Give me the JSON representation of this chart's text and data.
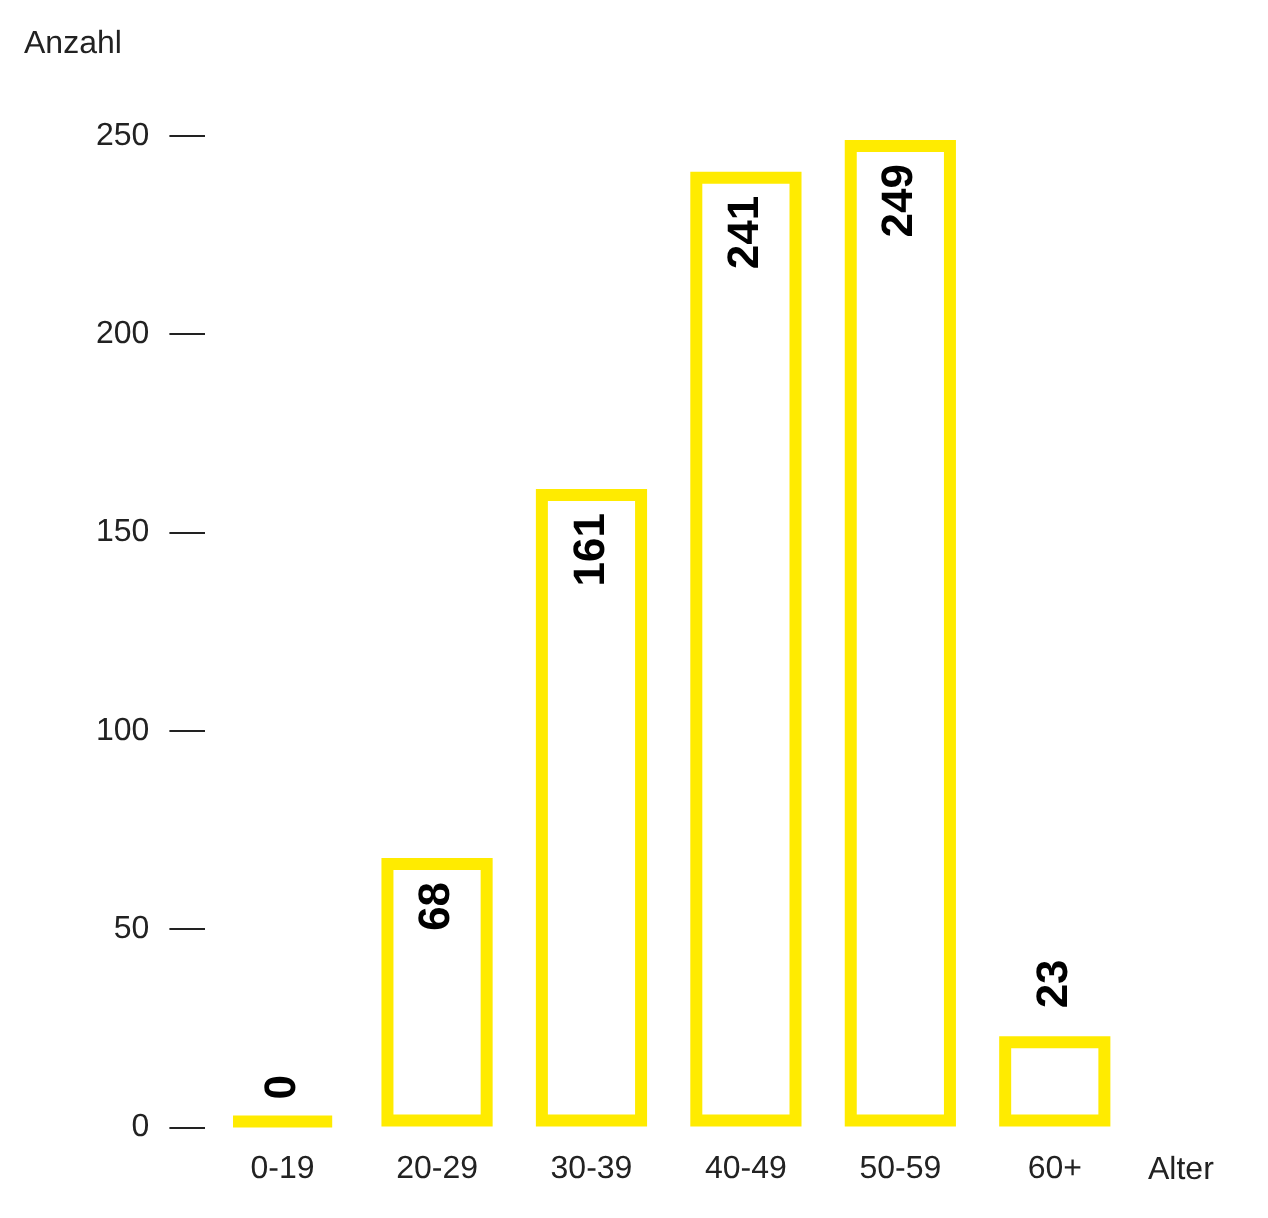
{
  "chart_data": {
    "type": "bar",
    "xlabel": "Alter",
    "ylabel": "Anzahl",
    "categories": [
      "0-19",
      "20-29",
      "30-39",
      "40-49",
      "50-59",
      "60+"
    ],
    "values": [
      0,
      68,
      161,
      241,
      249,
      23
    ],
    "color": "#ffeb00",
    "ylim": [
      0,
      250
    ],
    "yticks": [
      0,
      50,
      100,
      150,
      200,
      250
    ],
    "grid": false,
    "legend": false,
    "data_labels": true
  }
}
